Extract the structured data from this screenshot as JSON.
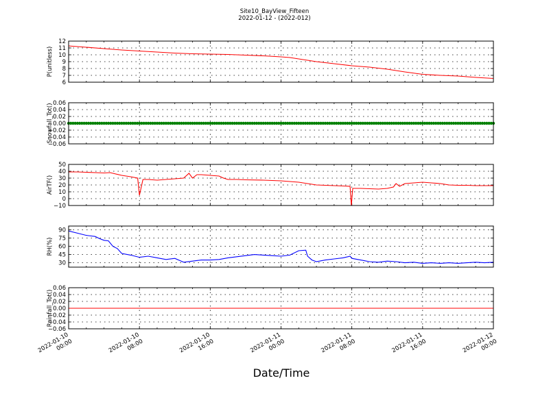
{
  "title_line1": "Site10_BayView_Fifteen",
  "title_line2": "2022-01-12 - (2022-012)",
  "xlabel": "Date/Time",
  "x_ticks": [
    {
      "l1": "2022-01-10",
      "l2": "00:00"
    },
    {
      "l1": "2022-01-10",
      "l2": "08:00"
    },
    {
      "l1": "2022-01-10",
      "l2": "16:00"
    },
    {
      "l1": "2022-01-11",
      "l2": "00:00"
    },
    {
      "l1": "2022-01-11",
      "l2": "08:00"
    },
    {
      "l1": "2022-01-11",
      "l2": "16:00"
    },
    {
      "l1": "2022-01-12",
      "l2": "00:00"
    }
  ],
  "chart_data": [
    {
      "type": "line",
      "ylabel": "P(unitless)",
      "ylim": [
        6,
        12
      ],
      "yticks": [
        "6",
        "7",
        "8",
        "9",
        "10",
        "11",
        "12"
      ],
      "color": "#ff0000",
      "x_unit": "hours since 2022-01-10 00:00",
      "x": [
        0,
        2,
        4,
        6,
        8,
        10,
        12,
        14,
        16,
        18,
        20,
        22,
        24,
        25,
        26,
        28,
        30,
        32,
        34,
        36,
        38,
        40,
        42,
        44,
        46,
        48
      ],
      "values": [
        11.3,
        11.1,
        10.9,
        10.7,
        10.55,
        10.4,
        10.25,
        10.15,
        10.1,
        10.05,
        9.95,
        9.85,
        9.7,
        9.6,
        9.4,
        9.0,
        8.7,
        8.4,
        8.2,
        7.9,
        7.5,
        7.15,
        7.0,
        6.9,
        6.7,
        6.55
      ],
      "grid": true
    },
    {
      "type": "line",
      "ylabel": "Snowfall_Tot()",
      "ylim": [
        -0.06,
        0.06
      ],
      "yticks": [
        "−0.06",
        "−0.04",
        "−0.02",
        "0.00",
        "0.02",
        "0.04",
        "0.06"
      ],
      "color": "#008000",
      "x": [
        0,
        48
      ],
      "values": [
        0,
        0
      ],
      "markers": true,
      "grid": true
    },
    {
      "type": "line",
      "ylabel": "AirTF()",
      "ylim": [
        -10,
        50
      ],
      "yticks": [
        "−10",
        "0",
        "10",
        "20",
        "30",
        "40",
        "50"
      ],
      "color": "#ff0000",
      "x": [
        0,
        1,
        2,
        3,
        4,
        4.7,
        5,
        6,
        7,
        7.8,
        8.0,
        8.4,
        9,
        10,
        11,
        12,
        13,
        13.6,
        14,
        14.5,
        15,
        16,
        17,
        17.5,
        18,
        19,
        20,
        22,
        24,
        25,
        26,
        27,
        28,
        29,
        30,
        31,
        31.8,
        31.95,
        32.1,
        33,
        34,
        35,
        36,
        36.7,
        37,
        37.4,
        38,
        39,
        40,
        41,
        42,
        43,
        44,
        45,
        46,
        47,
        48
      ],
      "values": [
        39,
        39,
        38.5,
        38,
        37.5,
        38,
        37,
        34,
        32,
        30,
        5,
        28,
        28,
        27,
        28,
        29,
        30,
        37,
        30,
        35,
        35,
        34,
        33,
        30,
        28,
        28,
        27.5,
        27,
        26,
        25,
        24,
        22,
        20,
        19.5,
        19,
        18.5,
        18,
        -10,
        15,
        15,
        14.5,
        14,
        15,
        17,
        22,
        18,
        22,
        23,
        24,
        23,
        22,
        20,
        19.5,
        19.5,
        19,
        19,
        19
      ],
      "grid": true
    },
    {
      "type": "line",
      "ylabel": "RH(%)",
      "ylim": [
        22,
        97
      ],
      "yticks": [
        "30",
        "45",
        "60",
        "75",
        "90"
      ],
      "color": "#0000ff",
      "x": [
        0,
        1,
        1.5,
        2,
        3,
        3.5,
        4,
        4.5,
        5,
        5.5,
        6,
        7,
        8,
        9,
        10,
        11,
        12,
        13,
        14,
        15,
        16,
        17,
        18,
        19,
        20,
        21,
        22,
        23,
        24,
        25,
        26,
        26.8,
        27,
        27.5,
        28,
        29,
        30,
        31,
        31.8,
        32,
        33,
        34,
        35,
        36,
        37,
        38,
        39,
        40,
        41,
        42,
        43,
        44,
        45,
        46,
        47,
        48
      ],
      "values": [
        88,
        84,
        82,
        80,
        78,
        74,
        71,
        70,
        60,
        56,
        47,
        44,
        40,
        42,
        39,
        36,
        38,
        31,
        33,
        35,
        35,
        36,
        39,
        41,
        43,
        45,
        44,
        43,
        42,
        44,
        52,
        53,
        42,
        35,
        32,
        35,
        37,
        39,
        42,
        38,
        35,
        32,
        31,
        33,
        32,
        30,
        31,
        29,
        30,
        29,
        30,
        29,
        30,
        31,
        30,
        31
      ],
      "grid": true
    },
    {
      "type": "line",
      "ylabel": "Rainfall_Tot()",
      "ylim": [
        -0.06,
        0.06
      ],
      "yticks": [
        "−0.06",
        "−0.04",
        "−0.02",
        "0.00",
        "0.02",
        "0.04",
        "0.06"
      ],
      "color": "#ff0000",
      "x": [
        0,
        48
      ],
      "values": [
        0,
        0
      ],
      "grid": true
    }
  ]
}
